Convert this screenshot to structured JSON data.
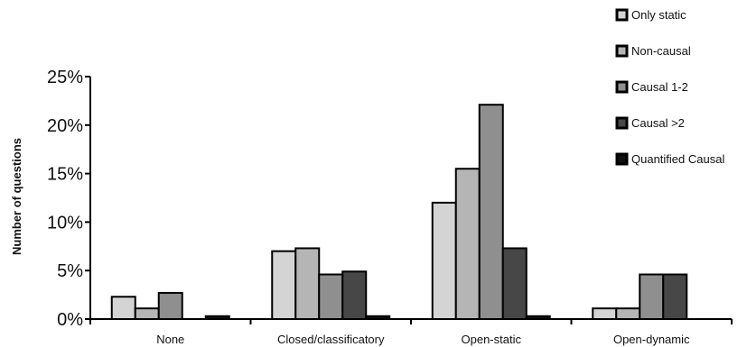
{
  "chart_data": {
    "type": "bar",
    "categories": [
      "None",
      "Closed/classificatory",
      "Open-static",
      "Open-dynamic"
    ],
    "series": [
      {
        "name": "Only static",
        "color": "#d4d4d4",
        "values": [
          2.3,
          7.0,
          12.0,
          1.1
        ]
      },
      {
        "name": "Non-causal",
        "color": "#b5b5b5",
        "values": [
          1.1,
          7.3,
          15.5,
          1.1
        ]
      },
      {
        "name": "Causal 1-2",
        "color": "#8f8f8f",
        "values": [
          2.7,
          4.6,
          22.1,
          4.6
        ]
      },
      {
        "name": "Causal >2",
        "color": "#474747",
        "values": [
          0.0,
          4.9,
          7.3,
          4.6
        ]
      },
      {
        "name": "Quantified Causal",
        "color": "#111111",
        "values": [
          0.3,
          0.3,
          0.3,
          0.0
        ]
      }
    ],
    "ylabel": "Number of questions",
    "ylim": [
      0,
      25
    ],
    "yticks": [
      0,
      5,
      10,
      15,
      20,
      25
    ],
    "ytick_labels": [
      "0%",
      "5%",
      "10%",
      "15%",
      "20%",
      "25%"
    ],
    "grid": false,
    "legend_position": "right"
  }
}
